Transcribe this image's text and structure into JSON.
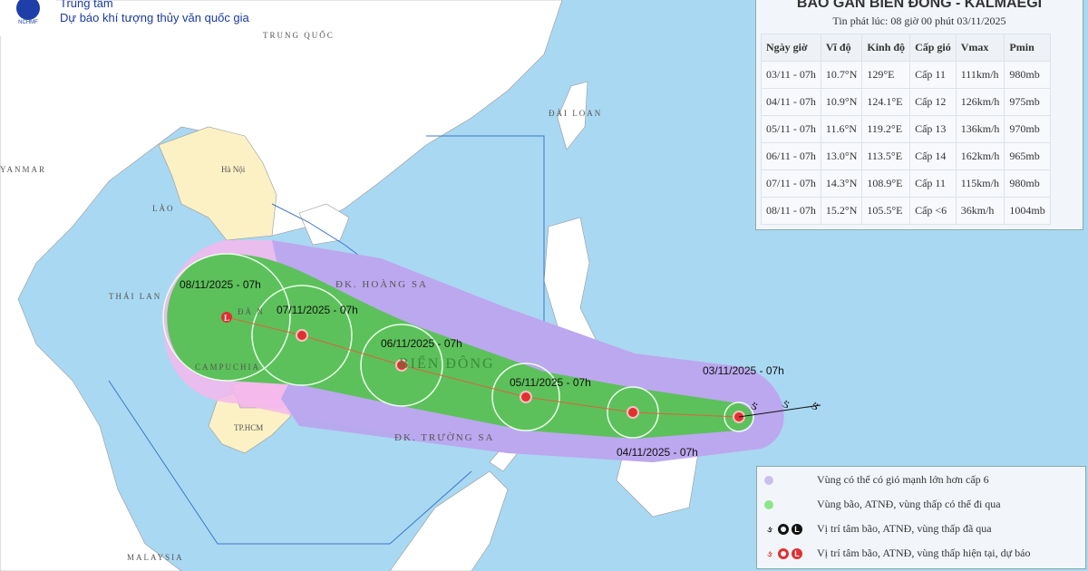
{
  "header": {
    "logo_text": "NCHMF",
    "org_line1": "Trung tâm",
    "org_line2": "Dự báo khí tượng thủy văn quốc gia"
  },
  "panel": {
    "title": "BÃO GẦN BIỂN ĐÔNG - KALMAEGI",
    "issued": "Tin phát lúc: 08 giờ 00 phút 03/11/2025",
    "columns": [
      "Ngày giờ",
      "Vĩ độ",
      "Kinh độ",
      "Cấp gió",
      "Vmax",
      "Pmin"
    ],
    "rows": [
      [
        "03/11 - 07h",
        "10.7°N",
        "129°E",
        "Cấp 11",
        "111km/h",
        "980mb"
      ],
      [
        "04/11 - 07h",
        "10.9°N",
        "124.1°E",
        "Cấp 12",
        "126km/h",
        "975mb"
      ],
      [
        "05/11 - 07h",
        "11.6°N",
        "119.2°E",
        "Cấp 13",
        "136km/h",
        "970mb"
      ],
      [
        "06/11 - 07h",
        "13.0°N",
        "113.5°E",
        "Cấp 14",
        "162km/h",
        "965mb"
      ],
      [
        "07/11 - 07h",
        "14.3°N",
        "108.9°E",
        "Cấp 11",
        "115km/h",
        "980mb"
      ],
      [
        "08/11 - 07h",
        "15.2°N",
        "105.5°E",
        "Cấp <6",
        "36km/h",
        "1004mb"
      ]
    ]
  },
  "map": {
    "labels": {
      "china": "TRUNG QUỐC",
      "myanmar": "YANMAR",
      "laos": "LÀO",
      "thailand": "THÁI LAN",
      "cambodia": "CAMPUCHIA",
      "hanoi": "Hà Nội",
      "hcm": "TP.HCM",
      "hoangsa": "ĐK. HOÀNG SA",
      "truongsa": "ĐK. TRƯỜNG SA",
      "biendong": "BIỂN ĐÔNG",
      "taiwan": "ĐÀI LOAN",
      "malaysia": "MALAYSIA",
      "danang": "ĐÀ N"
    },
    "forecast_points": [
      {
        "label": "03/11/2025 - 07h",
        "type": "storm"
      },
      {
        "label": "04/11/2025 - 07h",
        "type": "storm"
      },
      {
        "label": "05/11/2025 - 07h",
        "type": "storm"
      },
      {
        "label": "06/11/2025 - 07h",
        "type": "storm"
      },
      {
        "label": "07/11/2025 - 07h",
        "type": "storm"
      },
      {
        "label": "08/11/2025 - 07h",
        "type": "low"
      }
    ],
    "colors": {
      "sea": "#a9d8f2",
      "land": "#ffffff",
      "vietnam": "#fbf1c4",
      "wind_zone": "#b8a6ee",
      "pink_zone": "#f4b8ec",
      "storm_zone": "#5cc15a",
      "current": "#e03030",
      "past": "#111111"
    }
  },
  "legend": {
    "items": [
      {
        "text": "Vùng có thể có gió mạnh lớn hơn cấp 6",
        "color": "#cbbfee"
      },
      {
        "text": "Vùng bão, ATNĐ, vùng thấp có thể đi qua",
        "color": "#8ee58a"
      },
      {
        "text": "Vị trí tâm bão, ATNĐ, vùng thấp đã qua",
        "color": "#111111"
      },
      {
        "text": "Vị trí tâm bão, ATNĐ, vùng thấp hiện tại, dự báo",
        "color": "#e03030"
      }
    ]
  }
}
